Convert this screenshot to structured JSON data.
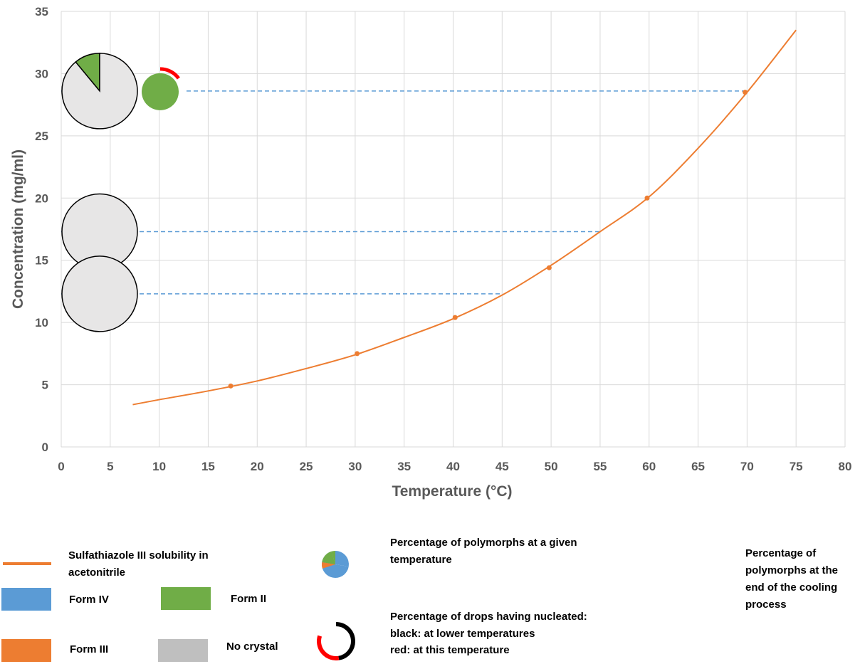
{
  "colors": {
    "solubility": "#ED7D31",
    "form_iv": "#5B9BD5",
    "form_ii": "#70AD47",
    "form_iii": "#ED7D31",
    "no_crystal": "#BFBFBF",
    "no_crystal_pie": "#E7E6E6",
    "nucleated_lower": "#000000",
    "nucleated_this": "#FF0000",
    "guide": "#5B9BD5",
    "grid": "#D9D9D9"
  },
  "chart_data": {
    "type": "line",
    "xlabel": "Temperature (°C)",
    "ylabel": "Concentration (mg/ml)",
    "xlim": [
      0,
      80
    ],
    "ylim": [
      0,
      35
    ],
    "xticks": [
      "0",
      "5",
      "10",
      "15",
      "20",
      "25",
      "30",
      "35",
      "40",
      "45",
      "50",
      "55",
      "60",
      "65",
      "70",
      "75",
      "80"
    ],
    "yticks": [
      "0",
      "5",
      "10",
      "15",
      "20",
      "25",
      "30",
      "35"
    ],
    "grid": true,
    "series": [
      {
        "name": "Sulfathiazole III solubility in acetonitrile",
        "style": "smooth-curve",
        "x": [
          7.3,
          10,
          15,
          20,
          25,
          30,
          35,
          40,
          45,
          50,
          55,
          60,
          65,
          70,
          75
        ],
        "y": [
          3.4,
          3.8,
          4.5,
          5.3,
          6.3,
          7.4,
          8.8,
          10.3,
          12.2,
          14.6,
          17.3,
          20.1,
          24.0,
          28.5,
          33.5
        ]
      }
    ],
    "markers": {
      "x": [
        17.3,
        30.2,
        40.2,
        49.8,
        59.8,
        69.8
      ],
      "y": [
        4.9,
        7.5,
        10.4,
        14.4,
        20.0,
        28.5
      ]
    },
    "guides": [
      {
        "y": 28.6,
        "x_end": 69.8
      },
      {
        "y": 17.3,
        "x_end": 55.2
      },
      {
        "y": 12.3,
        "x_end": 45.0
      }
    ],
    "pies": [
      {
        "y": 28.6,
        "slices": [
          {
            "name": "Form II",
            "fraction": 0.11
          },
          {
            "name": "No crystal",
            "fraction": 0.89
          }
        ]
      },
      {
        "y": 17.3,
        "slices": [
          {
            "name": "No crystal",
            "fraction": 1.0
          }
        ]
      },
      {
        "y": 12.3,
        "slices": [
          {
            "name": "No crystal",
            "fraction": 1.0
          }
        ]
      }
    ],
    "final_pies": [
      {
        "y": 28.6,
        "form": "Form II",
        "nucleated_this_fraction": 0.15,
        "nucleated_lower_fraction": 0.0
      }
    ]
  },
  "legend": {
    "solubility_line": "Sulfathiazole III solubility in acetonitrile",
    "form_iv": "Form IV",
    "form_ii": "Form II",
    "form_iii": "Form III",
    "no_crystal": "No crystal",
    "pie_explain": "Percentage of polymorphs at a given temperature",
    "ring_explain_title": "Percentage of drops having nucleated:",
    "ring_explain_black": "black: at lower temperatures",
    "ring_explain_red": "red: at this temperature",
    "final_explain": "Percentage of polymorphs at the end of the cooling process"
  }
}
